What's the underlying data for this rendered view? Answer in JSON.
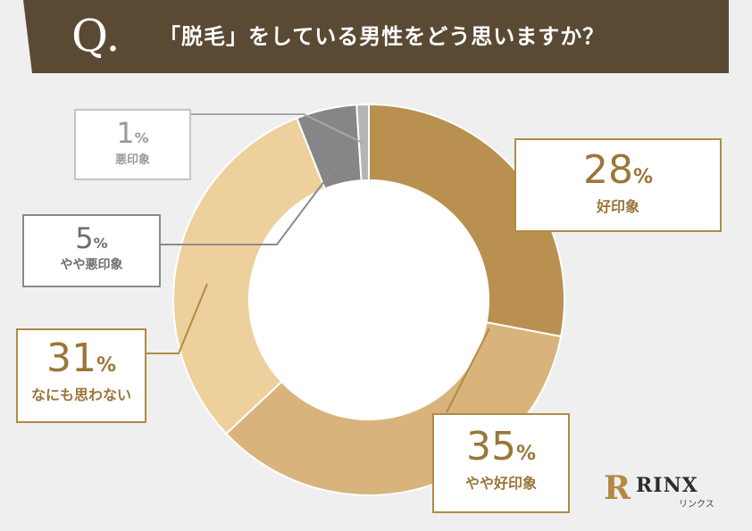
{
  "header": {
    "q_letter": "Q.",
    "question": "「脱毛」をしている男性をどう思いますか？"
  },
  "chart_data": {
    "type": "pie",
    "title": "「脱毛」をしている男性をどう思いますか？",
    "slices": [
      {
        "category": "好印象",
        "value": 28,
        "value_label": "28",
        "color": "#b99050"
      },
      {
        "category": "やや好印象",
        "value": 35,
        "value_label": "35",
        "color": "#d8b47c"
      },
      {
        "category": "なにも思わない",
        "value": 31,
        "value_label": "31",
        "color": "#eed09c"
      },
      {
        "category": "やや悪印象",
        "value": 5,
        "value_label": "5",
        "color": "#868686"
      },
      {
        "category": "悪印象",
        "value": 1,
        "value_label": "1",
        "color": "#b4b4b4"
      }
    ],
    "percent_sign": "%"
  },
  "logo": {
    "mark": "R",
    "word": "RINX",
    "kana": "リンクス"
  }
}
